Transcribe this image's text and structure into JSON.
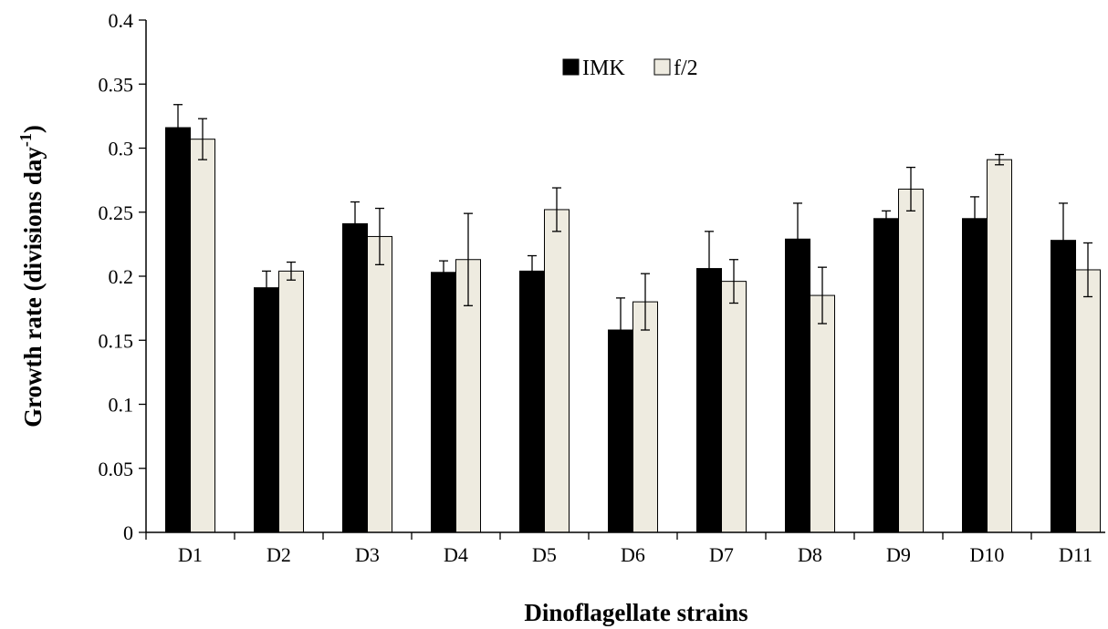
{
  "chart_data": {
    "type": "bar",
    "title": "",
    "xlabel": "Dinoflagellate strains",
    "ylabel": "Growth rate (divisions day",
    "ylabel_superscript": "-1",
    "ylabel_suffix": ")",
    "ylim": [
      0,
      0.4
    ],
    "yticks": [
      0,
      0.05,
      0.1,
      0.15,
      0.2,
      0.25,
      0.3,
      0.35,
      0.4
    ],
    "ytick_labels": [
      "0",
      "0.05",
      "0.1",
      "0.15",
      "0.2",
      "0.25",
      "0.3",
      "0.35",
      "0.4"
    ],
    "grid": false,
    "legend_position": "top-center",
    "categories": [
      "D1",
      "D2",
      "D3",
      "D4",
      "D5",
      "D6",
      "D7",
      "D8",
      "D9",
      "D10",
      "D11"
    ],
    "series": [
      {
        "name": "IMK",
        "color": "#000000",
        "values": [
          0.316,
          0.191,
          0.241,
          0.203,
          0.204,
          0.158,
          0.206,
          0.229,
          0.245,
          0.245,
          0.228
        ],
        "errors": [
          0.018,
          0.013,
          0.017,
          0.009,
          0.012,
          0.025,
          0.029,
          0.028,
          0.006,
          0.017,
          0.029
        ]
      },
      {
        "name": "f/2",
        "color": "#eeebe0",
        "values": [
          0.307,
          0.204,
          0.231,
          0.213,
          0.252,
          0.18,
          0.196,
          0.185,
          0.268,
          0.291,
          0.205
        ],
        "errors": [
          0.016,
          0.007,
          0.022,
          0.036,
          0.017,
          0.022,
          0.017,
          0.022,
          0.017,
          0.004,
          0.021
        ]
      }
    ]
  }
}
